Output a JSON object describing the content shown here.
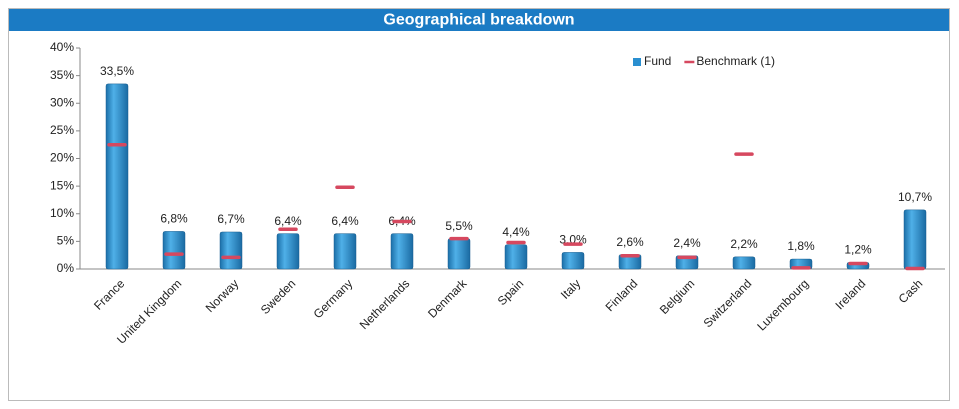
{
  "chart_data": {
    "type": "bar",
    "title": "Geographical breakdown",
    "categories": [
      "France",
      "United Kingdom",
      "Norway",
      "Sweden",
      "Germany",
      "Netherlands",
      "Denmark",
      "Spain",
      "Italy",
      "Finland",
      "Belgium",
      "Switzerland",
      "Luxembourg",
      "Ireland",
      "Cash"
    ],
    "series": [
      {
        "name": "Fund",
        "color": "#2a8fd0",
        "mark": "bar",
        "values": [
          33.5,
          6.8,
          6.7,
          6.4,
          6.4,
          6.4,
          5.5,
          4.4,
          3.0,
          2.6,
          2.4,
          2.2,
          1.8,
          1.2,
          10.7
        ],
        "value_labels": [
          "33,5%",
          "6,8%",
          "6,7%",
          "6,4%",
          "6,4%",
          "6,4%",
          "5,5%",
          "4,4%",
          "3,0%",
          "2,6%",
          "2,4%",
          "2,2%",
          "1,8%",
          "1,2%",
          "10,7%"
        ]
      },
      {
        "name": "Benchmark (1)",
        "color": "#d6485f",
        "mark": "dash",
        "values": [
          22.5,
          2.7,
          2.1,
          7.2,
          14.8,
          8.6,
          5.5,
          4.8,
          4.5,
          2.4,
          2.1,
          20.8,
          0.2,
          1.0,
          0.1
        ]
      }
    ],
    "ylim": [
      0,
      40
    ],
    "yticks": [
      {
        "value": 0,
        "label": "0%"
      },
      {
        "value": 5,
        "label": "5%"
      },
      {
        "value": 10,
        "label": "10%"
      },
      {
        "value": 15,
        "label": "15%"
      },
      {
        "value": 20,
        "label": "20%"
      },
      {
        "value": 25,
        "label": "25%"
      },
      {
        "value": 30,
        "label": "30%"
      },
      {
        "value": 35,
        "label": "35%"
      },
      {
        "value": 40,
        "label": "40%"
      }
    ],
    "legend": "upper right",
    "grid": false
  }
}
